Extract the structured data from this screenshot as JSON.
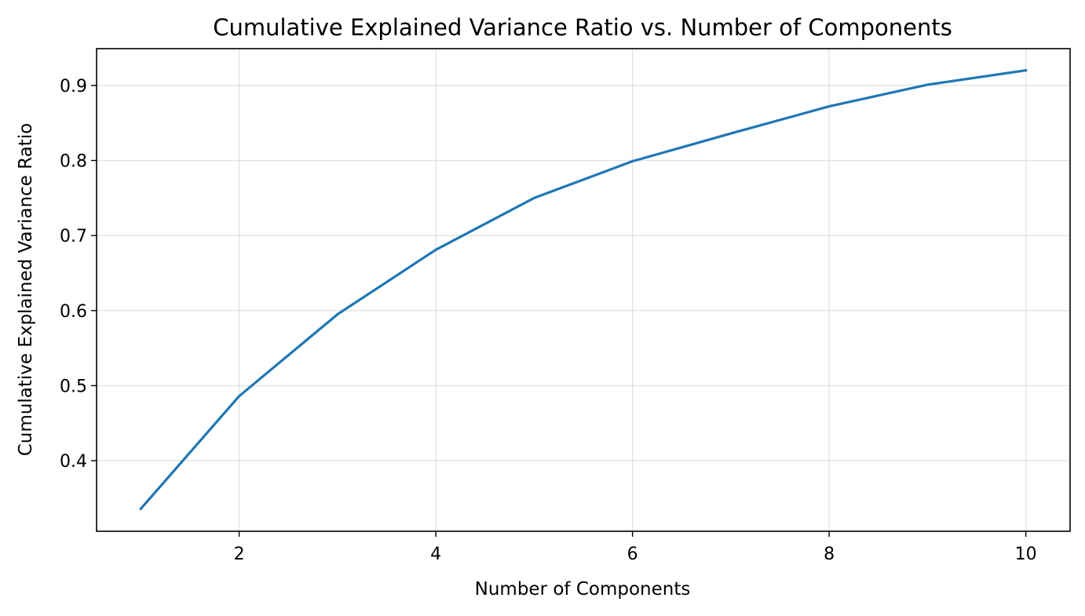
{
  "chart_data": {
    "type": "line",
    "title": "Cumulative Explained Variance Ratio vs. Number of Components",
    "xlabel": "Number of Components",
    "ylabel": "Cumulative Explained Variance Ratio",
    "xlim": [
      0.55,
      10.45
    ],
    "ylim": [
      0.306,
      0.949
    ],
    "x_ticks": [
      2,
      4,
      6,
      8,
      10
    ],
    "x_tick_labels": [
      "2",
      "4",
      "6",
      "8",
      "10"
    ],
    "y_ticks": [
      0.4,
      0.5,
      0.6,
      0.7,
      0.8,
      0.9
    ],
    "y_tick_labels": [
      "0.4",
      "0.5",
      "0.6",
      "0.7",
      "0.8",
      "0.9"
    ],
    "grid": true,
    "series": [
      {
        "color": "#1f77b4",
        "x": [
          1,
          2,
          3,
          4,
          5,
          6,
          7,
          8,
          9,
          10
        ],
        "values": [
          0.336,
          0.486,
          0.595,
          0.681,
          0.75,
          0.799,
          0.836,
          0.872,
          0.901,
          0.92
        ]
      }
    ]
  }
}
